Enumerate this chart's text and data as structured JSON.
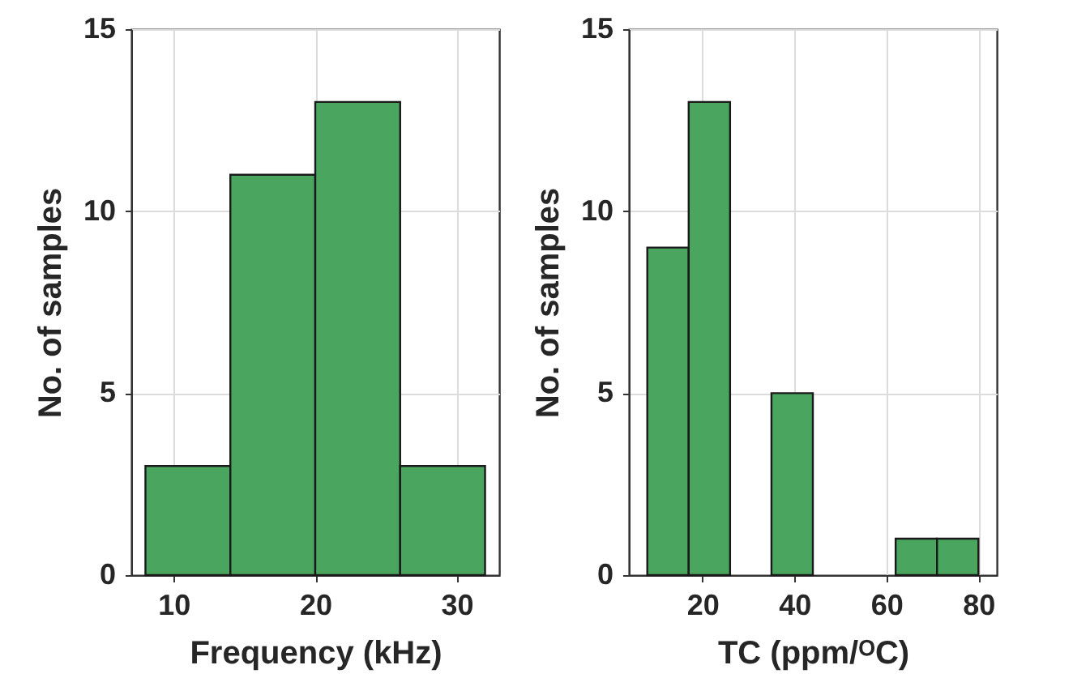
{
  "chart_data": [
    {
      "type": "histogram",
      "xlabel": "Frequency (kHz)",
      "ylabel": "No. of samples",
      "bins": [
        8,
        14,
        20,
        26,
        32
      ],
      "values": [
        3,
        11,
        13,
        3
      ],
      "color": "#4aa55e",
      "xlim": [
        7,
        33
      ],
      "xticks": [
        10,
        20,
        30
      ],
      "ylim": [
        0,
        15
      ],
      "yticks": [
        0,
        5,
        10,
        15
      ],
      "grid": true
    },
    {
      "type": "histogram",
      "xlabel": "TC (ppm/ᴼC)",
      "ylabel": "No. of samples",
      "bins": [
        8,
        17,
        26,
        35,
        44,
        53,
        62,
        71,
        80
      ],
      "values": [
        9,
        13,
        0,
        5,
        0,
        0,
        1,
        1
      ],
      "color": "#4aa55e",
      "xlim": [
        4,
        84
      ],
      "xticks": [
        20,
        40,
        60,
        80
      ],
      "ylim": [
        0,
        15
      ],
      "yticks": [
        0,
        5,
        10,
        15
      ],
      "grid": true
    }
  ]
}
